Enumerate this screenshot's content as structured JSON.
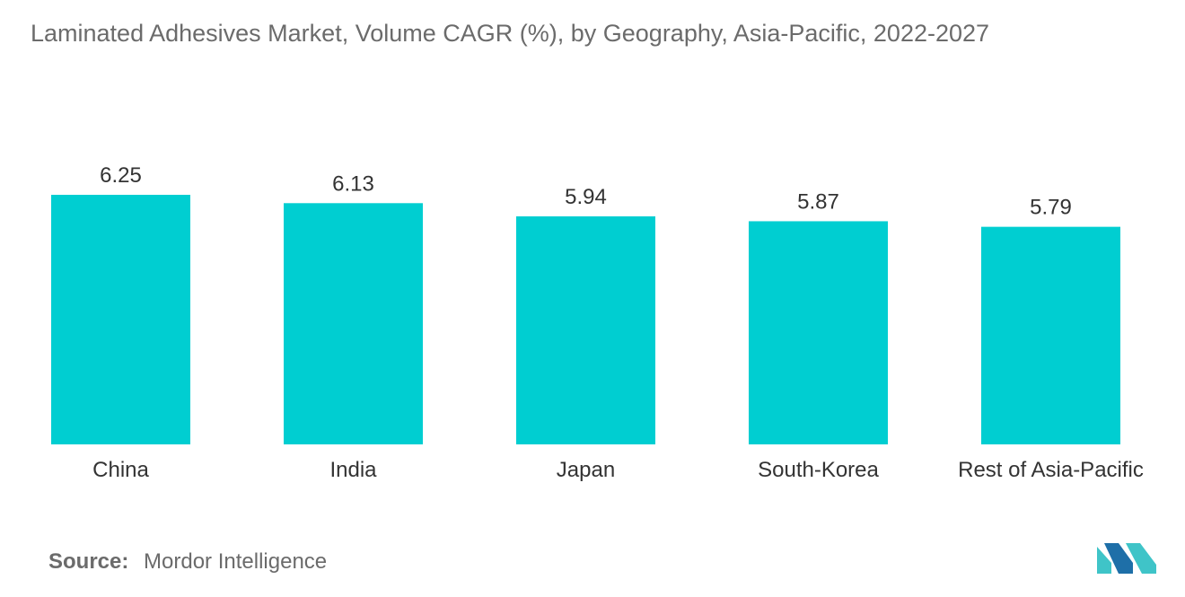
{
  "chart_data": {
    "type": "bar",
    "title": "Laminated Adhesives Market, Volume CAGR (%), by Geography, Asia-Pacific, 2022-2027",
    "categories": [
      "China",
      "India",
      "Japan",
      "South-Korea",
      "Rest of Asia-Pacific"
    ],
    "values": [
      6.25,
      6.13,
      5.94,
      5.87,
      5.79
    ],
    "value_labels": [
      "6.25",
      "6.13",
      "5.94",
      "5.87",
      "5.79"
    ],
    "xlabel": "",
    "ylabel": "",
    "ylim": [
      0,
      6.25
    ],
    "grid": false,
    "bar_color": "#00CED1"
  },
  "source": {
    "label": "Source:",
    "text": "Mordor Intelligence"
  },
  "logo": {
    "icon": "mordor-intelligence-logo",
    "colors": [
      "#1e6fa8",
      "#3fc4c8"
    ]
  }
}
